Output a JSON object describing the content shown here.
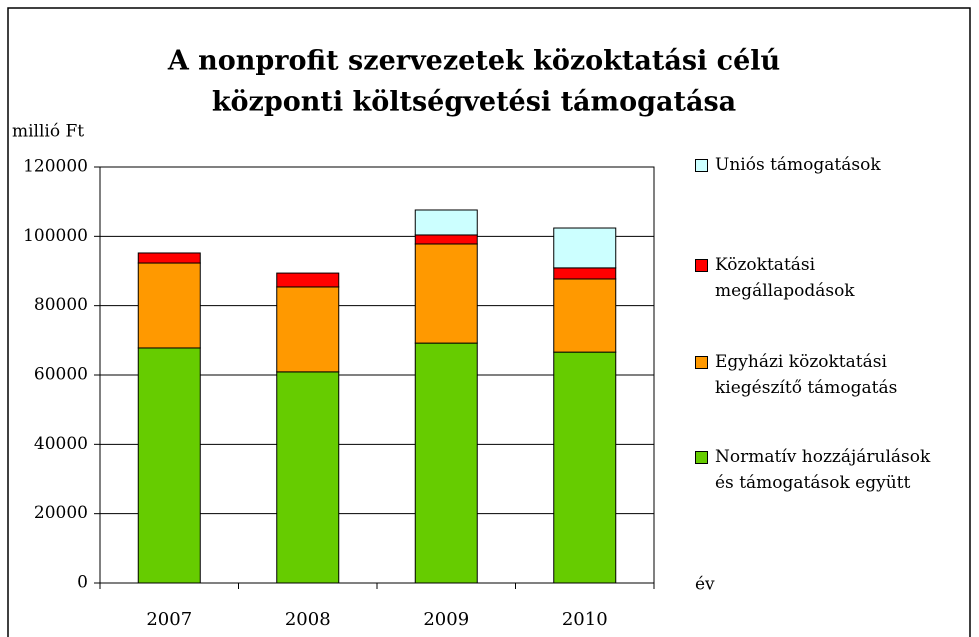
{
  "chart_data": {
    "type": "stacked_bar",
    "title": [
      "A nonprofit szervezetek közoktatási célú",
      "központi költségvetési támogatása"
    ],
    "y_label": "millió Ft",
    "x_label": "év",
    "categories": [
      "2007",
      "2008",
      "2009",
      "2010"
    ],
    "series": [
      {
        "name": "Normatív hozzájárulások és támogatások együtt",
        "color": "#66cc00",
        "values": [
          67800,
          60900,
          69200,
          66600
        ]
      },
      {
        "name": "Egyházi közoktatási kiegészítő támogatás",
        "color": "#ff9900",
        "values": [
          24500,
          24500,
          28600,
          21100
        ]
      },
      {
        "name": "Közoktatási megállapodások",
        "color": "#ff0000",
        "values": [
          2900,
          4000,
          2600,
          3200
        ]
      },
      {
        "name": "Uniós támogatások",
        "color": "#ccffff",
        "values": [
          0,
          0,
          7200,
          11500
        ]
      }
    ],
    "ylim": [
      0,
      120000
    ],
    "yticks": [
      0,
      20000,
      40000,
      60000,
      80000,
      100000,
      120000
    ],
    "grid": true,
    "legend": "right"
  }
}
